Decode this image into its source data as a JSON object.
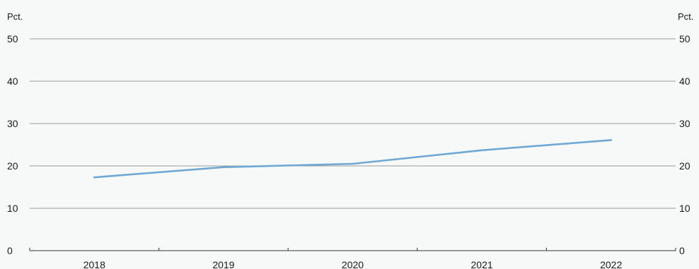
{
  "chart_data": {
    "type": "line",
    "x": [
      "2018",
      "2019",
      "2020",
      "2021",
      "2022"
    ],
    "series": [
      {
        "values": [
          17.3,
          19.7,
          20.5,
          23.7,
          26.1
        ],
        "color": "#6fa8d4"
      }
    ],
    "y_unit_left": "Pct.",
    "y_unit_right": "Pct.",
    "ylim": [
      0,
      50
    ],
    "yticks": [
      0,
      10,
      20,
      30,
      40,
      50
    ],
    "grid": true,
    "colors": {
      "background": "#f7f9f8",
      "grid": "#9a9a9a",
      "axis": "#333333"
    }
  }
}
